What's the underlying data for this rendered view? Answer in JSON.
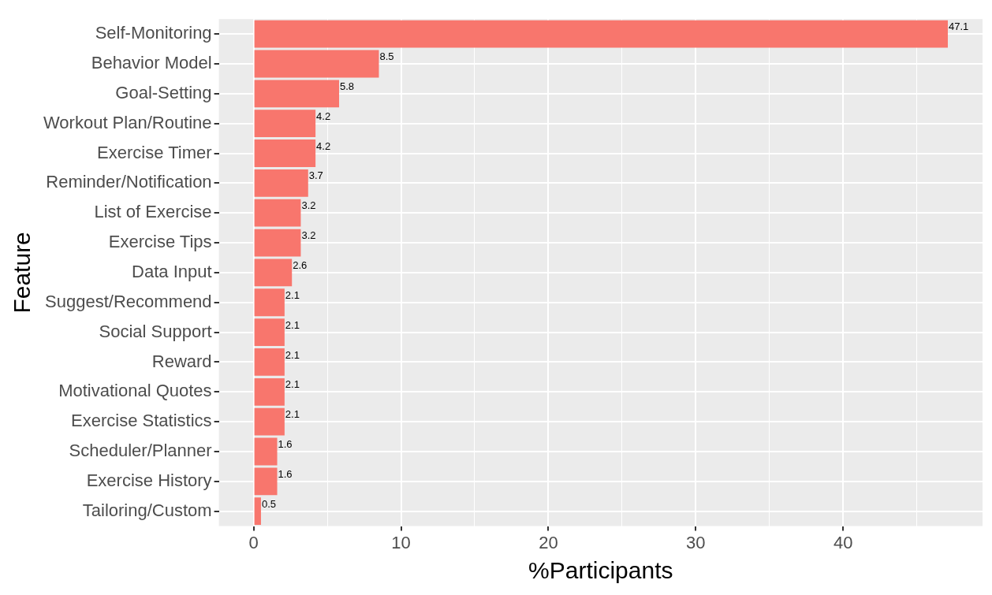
{
  "chart_data": {
    "type": "bar",
    "orientation": "horizontal",
    "xlabel": "%Participants",
    "ylabel": "Feature",
    "categories": [
      "Self-Monitoring",
      "Behavior Model",
      "Goal-Setting",
      "Workout Plan/Routine",
      "Exercise Timer",
      "Reminder/Notification",
      "List of Exercise",
      "Exercise Tips",
      "Data Input",
      "Suggest/Recommend",
      "Social Support",
      "Reward",
      "Motivational Quotes",
      "Exercise Statistics",
      "Scheduler/Planner",
      "Exercise History",
      "Tailoring/Custom"
    ],
    "values": [
      47.1,
      8.5,
      5.8,
      4.2,
      4.2,
      3.7,
      3.2,
      3.2,
      2.6,
      2.1,
      2.1,
      2.1,
      2.1,
      2.1,
      1.6,
      1.6,
      0.5
    ],
    "color": "#f8766d",
    "xlim": [
      -2.355,
      49.455
    ],
    "xticks": [
      0,
      {
        "value": 5,
        "label": null
      },
      10,
      {
        "value": 15,
        "label": null
      },
      20,
      {
        "value": 25,
        "label": null
      },
      30,
      {
        "value": 35,
        "label": null
      },
      40,
      {
        "value": 45,
        "label": null
      }
    ],
    "grid": true,
    "data_labels": true,
    "legend": false
  }
}
